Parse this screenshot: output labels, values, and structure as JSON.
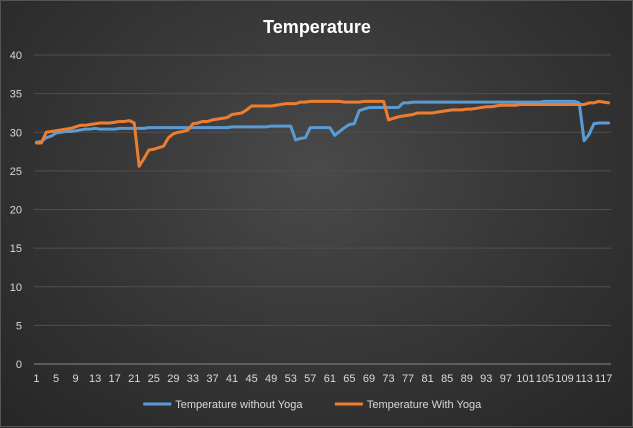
{
  "chart_data": {
    "type": "line",
    "title": "Temperature",
    "xlabel": "",
    "ylabel": "",
    "ylim": [
      0,
      40
    ],
    "y_ticks": [
      "0",
      "5",
      "10",
      "15",
      "20",
      "25",
      "30",
      "35",
      "40"
    ],
    "x_tick_labels": [
      "1",
      "5",
      "9",
      "13",
      "17",
      "21",
      "25",
      "29",
      "33",
      "37",
      "41",
      "45",
      "49",
      "53",
      "57",
      "61",
      "65",
      "69",
      "73",
      "77",
      "81",
      "85",
      "89",
      "93",
      "97",
      "101",
      "105",
      "109",
      "113",
      "117"
    ],
    "x_points": 118,
    "grid": "horizontal",
    "legend_position": "bottom",
    "series": [
      {
        "name": "Temperature without Yoga",
        "color": "#5b9bd5",
        "values": [
          28.7,
          28.8,
          29.3,
          29.5,
          29.9,
          30.0,
          30.1,
          30.1,
          30.2,
          30.3,
          30.4,
          30.4,
          30.5,
          30.4,
          30.4,
          30.4,
          30.4,
          30.5,
          30.5,
          30.5,
          30.5,
          30.5,
          30.5,
          30.6,
          30.6,
          30.6,
          30.6,
          30.6,
          30.6,
          30.6,
          30.6,
          30.6,
          30.6,
          30.6,
          30.6,
          30.6,
          30.6,
          30.6,
          30.6,
          30.6,
          30.7,
          30.7,
          30.7,
          30.7,
          30.7,
          30.7,
          30.7,
          30.7,
          30.8,
          30.8,
          30.8,
          30.8,
          30.8,
          29.0,
          29.2,
          29.3,
          30.6,
          30.6,
          30.6,
          30.6,
          30.6,
          29.6,
          30.1,
          30.6,
          31.0,
          31.1,
          32.8,
          33.0,
          33.2,
          33.2,
          33.2,
          33.2,
          33.2,
          33.2,
          33.2,
          33.8,
          33.8,
          33.9,
          33.9,
          33.9,
          33.9,
          33.9,
          33.9,
          33.9,
          33.9,
          33.9,
          33.9,
          33.9,
          33.9,
          33.9,
          33.9,
          33.9,
          33.9,
          33.9,
          33.9,
          33.9,
          33.9,
          33.9,
          33.9,
          33.9,
          33.9,
          33.9,
          33.9,
          33.9,
          34.0,
          34.0,
          34.0,
          34.0,
          34.0,
          34.0,
          34.0,
          33.8,
          28.9,
          29.7,
          31.1,
          31.2,
          31.2,
          31.2
        ]
      },
      {
        "name": "Temperature With Yoga",
        "color": "#ed7d31",
        "values": [
          28.6,
          28.6,
          30.0,
          30.1,
          30.2,
          30.3,
          30.4,
          30.5,
          30.7,
          30.9,
          30.9,
          31.0,
          31.1,
          31.2,
          31.2,
          31.2,
          31.3,
          31.4,
          31.4,
          31.5,
          31.2,
          25.6,
          26.6,
          27.7,
          27.8,
          28.0,
          28.2,
          29.3,
          29.8,
          30.0,
          30.1,
          30.3,
          31.1,
          31.2,
          31.4,
          31.4,
          31.6,
          31.7,
          31.8,
          31.9,
          32.3,
          32.4,
          32.5,
          32.9,
          33.4,
          33.4,
          33.4,
          33.4,
          33.4,
          33.5,
          33.6,
          33.7,
          33.7,
          33.7,
          33.9,
          33.9,
          34.0,
          34.0,
          34.0,
          34.0,
          34.0,
          34.0,
          34.0,
          33.9,
          33.9,
          33.9,
          33.9,
          34.0,
          34.0,
          34.0,
          34.0,
          34.0,
          31.6,
          31.8,
          32.0,
          32.1,
          32.2,
          32.3,
          32.5,
          32.5,
          32.5,
          32.5,
          32.6,
          32.7,
          32.8,
          32.9,
          32.9,
          32.9,
          33.0,
          33.0,
          33.1,
          33.2,
          33.3,
          33.3,
          33.4,
          33.5,
          33.5,
          33.5,
          33.5,
          33.6,
          33.6,
          33.6,
          33.6,
          33.6,
          33.6,
          33.6,
          33.6,
          33.6,
          33.6,
          33.6,
          33.6,
          33.6,
          33.6,
          33.8,
          33.8,
          34.0,
          33.9,
          33.8
        ]
      }
    ]
  }
}
